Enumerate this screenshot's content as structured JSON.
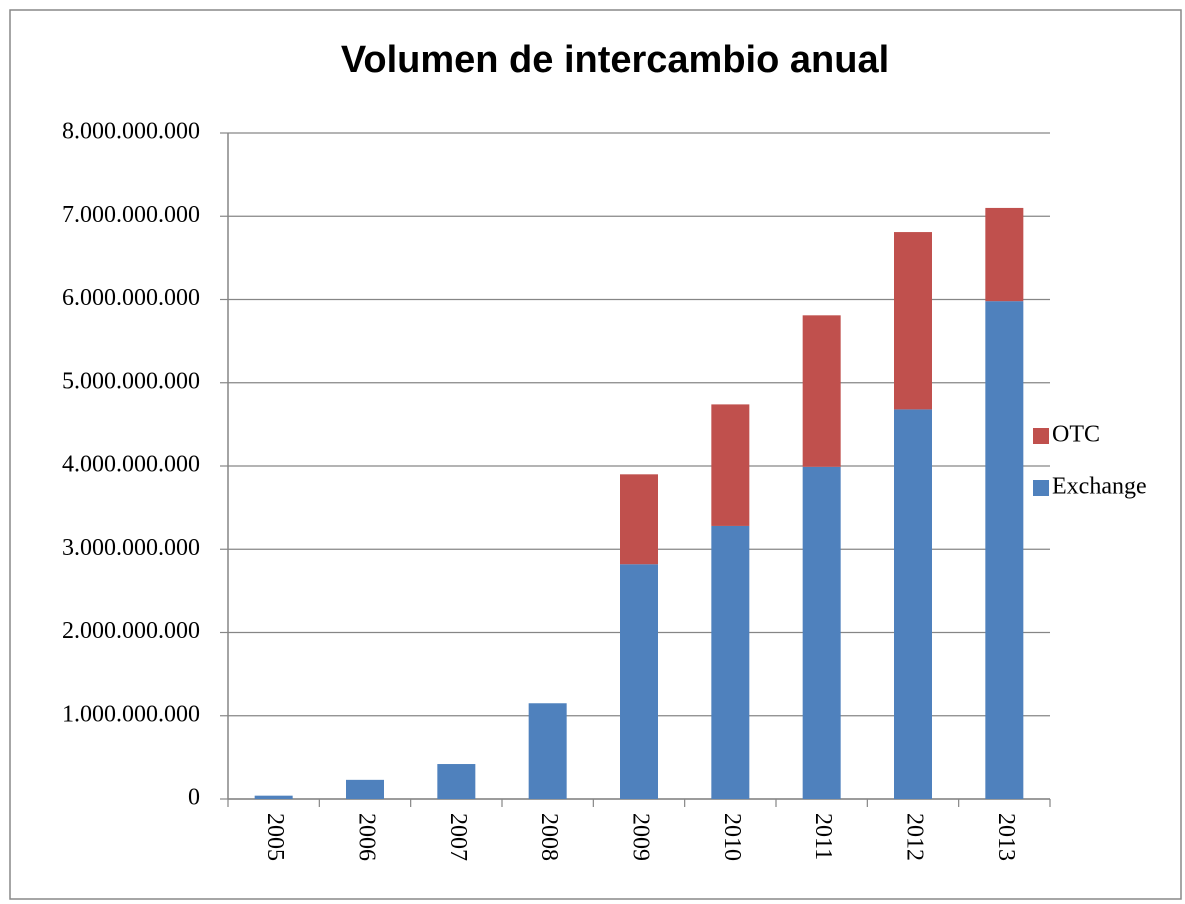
{
  "chart_data": {
    "type": "stacked_bar",
    "title": "Volumen de intercambio anual",
    "categories": [
      "2005",
      "2006",
      "2007",
      "2008",
      "2009",
      "2010",
      "2011",
      "2012",
      "2013"
    ],
    "series": [
      {
        "name": "Exchange",
        "color": "#4f81bd",
        "values": [
          40000000,
          230000000,
          420000000,
          1150000000,
          2820000000,
          3280000000,
          3990000000,
          4680000000,
          5980000000
        ]
      },
      {
        "name": "OTC",
        "color": "#c0504d",
        "values": [
          0,
          0,
          0,
          0,
          1080000000,
          1460000000,
          1820000000,
          2130000000,
          1120000000
        ]
      }
    ],
    "ylim": [
      0,
      8000000000
    ],
    "yticks": [
      0,
      {
        "value": 1000000000,
        "label": "1.000.000.000"
      },
      {
        "value": 2000000000,
        "label": "2.000.000.000"
      },
      {
        "value": 3000000000,
        "label": "3.000.000.000"
      },
      {
        "value": 4000000000,
        "label": "4.000.000.000"
      },
      {
        "value": 5000000000,
        "label": "5.000.000.000"
      },
      {
        "value": 6000000000,
        "label": "6.000.000.000"
      },
      {
        "value": 7000000000,
        "label": "7.000.000.000"
      },
      {
        "value": 8000000000,
        "label": "8.000.000.000"
      }
    ],
    "grid": true,
    "legend": "right"
  }
}
